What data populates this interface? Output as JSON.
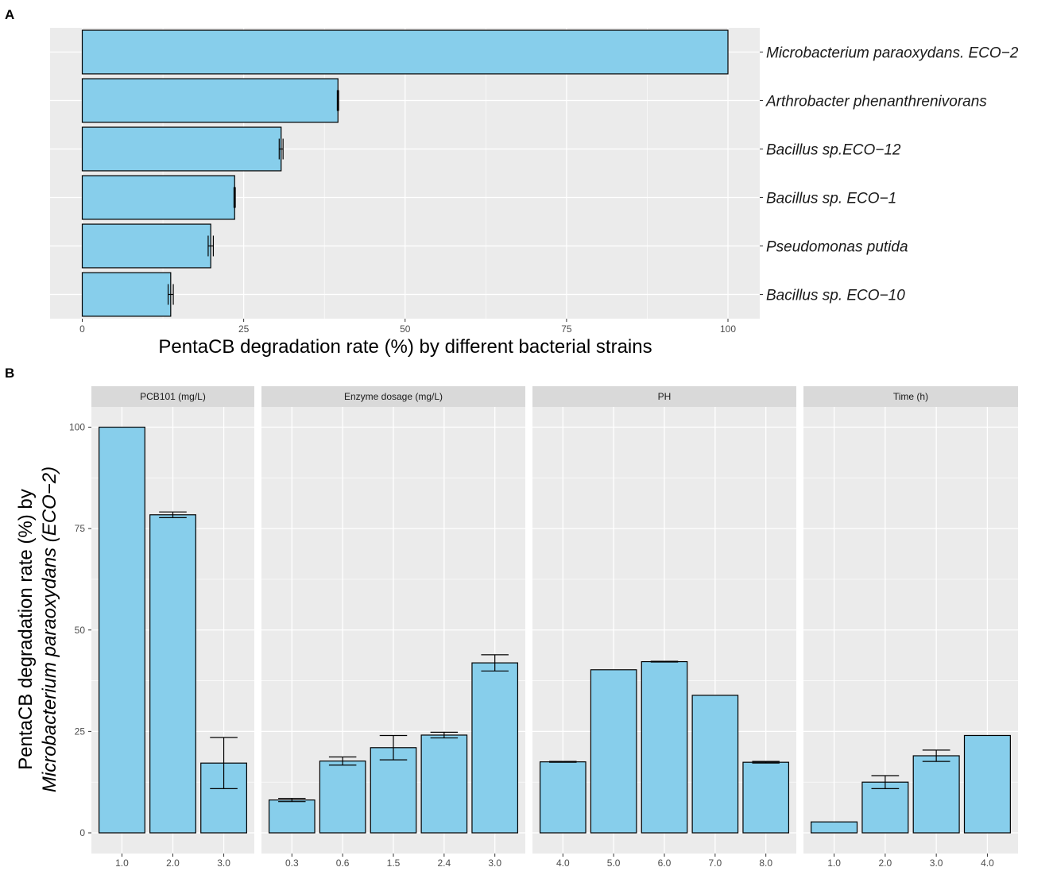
{
  "colors": {
    "bar_fill": "#87ceeb",
    "bar_stroke": "#000000",
    "panel_bg": "#ebebeb",
    "grid": "#ffffff",
    "strip_bg": "#d9d9d9"
  },
  "chart_data": [
    {
      "type": "bar",
      "orientation": "horizontal",
      "panel_label": "A",
      "categories": [
        "Microbacterium paraoxydans. ECO−2",
        "Arthrobacter phenanthrenivorans",
        "Bacillus sp.ECO−12",
        "Bacillus sp. ECO−1",
        "Pseudomonas putida",
        "Bacillus sp. ECO−10"
      ],
      "values": [
        100,
        39.6,
        30.8,
        23.6,
        19.9,
        13.7
      ],
      "errors": [
        0,
        0.1,
        0.3,
        0.1,
        0.4,
        0.4
      ],
      "xlim": [
        0,
        100
      ],
      "xticks": [
        0,
        25,
        50,
        75,
        100
      ],
      "xlabel": "PentaCB degradation rate (%) by different bacterial strains",
      "ylabel": "",
      "category_axis_side": "right"
    },
    {
      "type": "bar",
      "orientation": "vertical",
      "panel_label": "B",
      "ylim": [
        0,
        100
      ],
      "yticks": [
        0,
        25,
        50,
        75,
        100
      ],
      "ylabel_line1": "PentaCB degradation rate (%) by",
      "ylabel_line2": "Microbacterium paraoxydans (ECO−2)",
      "facets": [
        {
          "title": "PCB101 (mg/L)",
          "categories": [
            "1.0",
            "2.0",
            "3.0"
          ],
          "values": [
            100,
            78.4,
            17.2
          ],
          "errors": [
            0,
            0.7,
            6.3
          ]
        },
        {
          "title": "Enzyme dosage (mg/L)",
          "categories": [
            "0.3",
            "0.6",
            "1.5",
            "2.4",
            "3.0"
          ],
          "values": [
            8.1,
            17.7,
            21.0,
            24.1,
            41.9
          ],
          "errors": [
            0.4,
            1.0,
            3.0,
            0.7,
            2.0
          ]
        },
        {
          "title": "PH",
          "categories": [
            "4.0",
            "5.0",
            "6.0",
            "7.0",
            "8.0"
          ],
          "values": [
            17.5,
            40.2,
            42.2,
            33.9,
            17.4
          ],
          "errors": [
            0.1,
            0,
            0.1,
            0,
            0.2
          ]
        },
        {
          "title": "Time (h)",
          "categories": [
            "1.0",
            "2.0",
            "3.0",
            "4.0"
          ],
          "values": [
            2.7,
            12.5,
            19.0,
            24.0
          ],
          "errors": [
            0,
            1.6,
            1.4,
            0
          ]
        }
      ]
    }
  ]
}
